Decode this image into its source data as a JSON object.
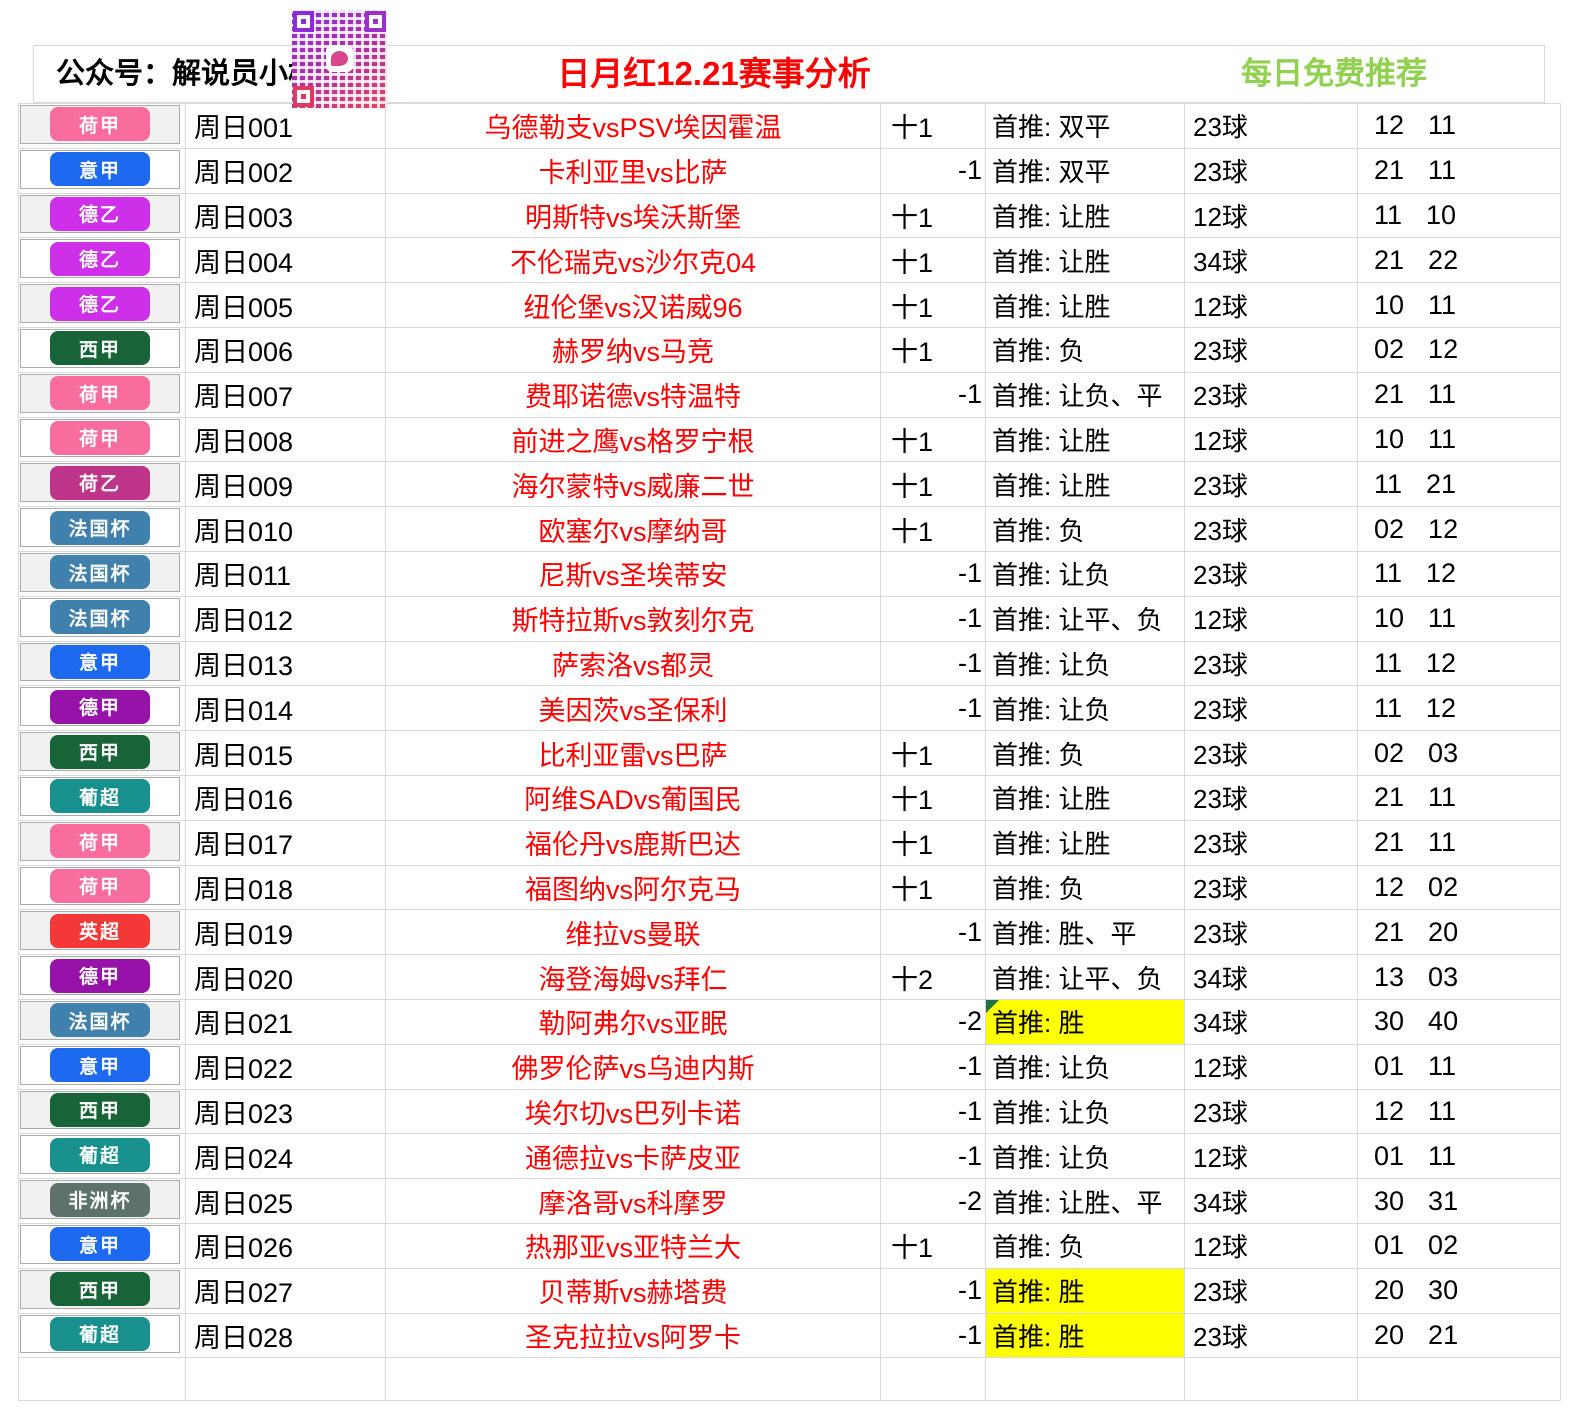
{
  "header": {
    "account": "公众号：解说员小梅",
    "title": "日月红12.21赛事分析",
    "promo": "每日免费推荐"
  },
  "styles": {
    "title_color": "#FF0000",
    "promo_color": "#92D050",
    "match_color": "#FF0000",
    "highlight_color": "#FFFF00",
    "marker_color": "#1E7145"
  },
  "league_colors": {
    "荷甲": "#F96C9E",
    "意甲": "#1D6AF0",
    "德乙": "#CE2FE8",
    "西甲": "#186438",
    "荷乙": "#BE3489",
    "法国杯": "#3F80AC",
    "德甲": "#9712A8",
    "葡超": "#18908E",
    "英超": "#F43838",
    "非洲杯": "#5D726D"
  },
  "rows": [
    {
      "league": "荷甲",
      "id": "周日001",
      "match": "乌德勒支vsPSV埃因霍温",
      "handicap": "十1",
      "pick": "首推: 双平",
      "goals": "23球",
      "num1": "12",
      "num2": "11",
      "highlight": false,
      "marker": false
    },
    {
      "league": "意甲",
      "id": "周日002",
      "match": "卡利亚里vs比萨",
      "handicap": "-1",
      "pick": "首推: 双平",
      "goals": "23球",
      "num1": "21",
      "num2": "11",
      "highlight": false,
      "marker": false
    },
    {
      "league": "德乙",
      "id": "周日003",
      "match": "明斯特vs埃沃斯堡",
      "handicap": "十1",
      "pick": "首推: 让胜",
      "goals": "12球",
      "num1": "11",
      "num2": "10",
      "highlight": false,
      "marker": false
    },
    {
      "league": "德乙",
      "id": "周日004",
      "match": "不伦瑞克vs沙尔克04",
      "handicap": "十1",
      "pick": "首推: 让胜",
      "goals": "34球",
      "num1": "21",
      "num2": "22",
      "highlight": false,
      "marker": false
    },
    {
      "league": "德乙",
      "id": "周日005",
      "match": "纽伦堡vs汉诺威96",
      "handicap": "十1",
      "pick": "首推: 让胜",
      "goals": "12球",
      "num1": "10",
      "num2": "11",
      "highlight": false,
      "marker": false
    },
    {
      "league": "西甲",
      "id": "周日006",
      "match": "赫罗纳vs马竞",
      "handicap": "十1",
      "pick": "首推: 负",
      "goals": "23球",
      "num1": "02",
      "num2": "12",
      "highlight": false,
      "marker": false
    },
    {
      "league": "荷甲",
      "id": "周日007",
      "match": "费耶诺德vs特温特",
      "handicap": "-1",
      "pick": "首推: 让负、平",
      "goals": "23球",
      "num1": "21",
      "num2": "11",
      "highlight": false,
      "marker": false
    },
    {
      "league": "荷甲",
      "id": "周日008",
      "match": "前进之鹰vs格罗宁根",
      "handicap": "十1",
      "pick": "首推: 让胜",
      "goals": "12球",
      "num1": "10",
      "num2": "11",
      "highlight": false,
      "marker": false
    },
    {
      "league": "荷乙",
      "id": "周日009",
      "match": "海尔蒙特vs威廉二世",
      "handicap": "十1",
      "pick": "首推: 让胜",
      "goals": "23球",
      "num1": "11",
      "num2": "21",
      "highlight": false,
      "marker": false
    },
    {
      "league": "法国杯",
      "id": "周日010",
      "match": "欧塞尔vs摩纳哥",
      "handicap": "十1",
      "pick": "首推: 负",
      "goals": "23球",
      "num1": "02",
      "num2": "12",
      "highlight": false,
      "marker": false
    },
    {
      "league": "法国杯",
      "id": "周日011",
      "match": "尼斯vs圣埃蒂安",
      "handicap": "-1",
      "pick": "首推: 让负",
      "goals": "23球",
      "num1": "11",
      "num2": "12",
      "highlight": false,
      "marker": false
    },
    {
      "league": "法国杯",
      "id": "周日012",
      "match": "斯特拉斯vs敦刻尔克",
      "handicap": "-1",
      "pick": "首推: 让平、负",
      "goals": "12球",
      "num1": "10",
      "num2": "11",
      "highlight": false,
      "marker": false
    },
    {
      "league": "意甲",
      "id": "周日013",
      "match": "萨索洛vs都灵",
      "handicap": "-1",
      "pick": "首推: 让负",
      "goals": "23球",
      "num1": "11",
      "num2": "12",
      "highlight": false,
      "marker": false
    },
    {
      "league": "德甲",
      "id": "周日014",
      "match": "美因茨vs圣保利",
      "handicap": "-1",
      "pick": "首推: 让负",
      "goals": "23球",
      "num1": "11",
      "num2": "12",
      "highlight": false,
      "marker": false
    },
    {
      "league": "西甲",
      "id": "周日015",
      "match": "比利亚雷vs巴萨",
      "handicap": "十1",
      "pick": "首推: 负",
      "goals": "23球",
      "num1": "02",
      "num2": "03",
      "highlight": false,
      "marker": false
    },
    {
      "league": "葡超",
      "id": "周日016",
      "match": "阿维SADvs葡国民",
      "handicap": "十1",
      "pick": "首推: 让胜",
      "goals": "23球",
      "num1": "21",
      "num2": "11",
      "highlight": false,
      "marker": false
    },
    {
      "league": "荷甲",
      "id": "周日017",
      "match": "福伦丹vs鹿斯巴达",
      "handicap": "十1",
      "pick": "首推: 让胜",
      "goals": "23球",
      "num1": "21",
      "num2": "11",
      "highlight": false,
      "marker": false
    },
    {
      "league": "荷甲",
      "id": "周日018",
      "match": "福图纳vs阿尔克马",
      "handicap": "十1",
      "pick": "首推: 负",
      "goals": "23球",
      "num1": "12",
      "num2": "02",
      "highlight": false,
      "marker": false
    },
    {
      "league": "英超",
      "id": "周日019",
      "match": "维拉vs曼联",
      "handicap": "-1",
      "pick": "首推: 胜、平",
      "goals": "23球",
      "num1": "21",
      "num2": "20",
      "highlight": false,
      "marker": false
    },
    {
      "league": "德甲",
      "id": "周日020",
      "match": "海登海姆vs拜仁",
      "handicap": "十2",
      "pick": "首推: 让平、负",
      "goals": "34球",
      "num1": "13",
      "num2": "03",
      "highlight": false,
      "marker": false
    },
    {
      "league": "法国杯",
      "id": "周日021",
      "match": "勒阿弗尔vs亚眠",
      "handicap": "-2",
      "pick": "首推: 胜",
      "goals": "34球",
      "num1": "30",
      "num2": "40",
      "highlight": true,
      "marker": true
    },
    {
      "league": "意甲",
      "id": "周日022",
      "match": "佛罗伦萨vs乌迪内斯",
      "handicap": "-1",
      "pick": "首推: 让负",
      "goals": "12球",
      "num1": "01",
      "num2": "11",
      "highlight": false,
      "marker": false
    },
    {
      "league": "西甲",
      "id": "周日023",
      "match": "埃尔切vs巴列卡诺",
      "handicap": "-1",
      "pick": "首推: 让负",
      "goals": "23球",
      "num1": "12",
      "num2": "11",
      "highlight": false,
      "marker": false
    },
    {
      "league": "葡超",
      "id": "周日024",
      "match": "通德拉vs卡萨皮亚",
      "handicap": "-1",
      "pick": "首推: 让负",
      "goals": "12球",
      "num1": "01",
      "num2": "11",
      "highlight": false,
      "marker": false
    },
    {
      "league": "非洲杯",
      "id": "周日025",
      "match": "摩洛哥vs科摩罗",
      "handicap": "-2",
      "pick": "首推: 让胜、平",
      "goals": "34球",
      "num1": "30",
      "num2": "31",
      "highlight": false,
      "marker": false
    },
    {
      "league": "意甲",
      "id": "周日026",
      "match": "热那亚vs亚特兰大",
      "handicap": "十1",
      "pick": "首推: 负",
      "goals": "12球",
      "num1": "01",
      "num2": "02",
      "highlight": false,
      "marker": false
    },
    {
      "league": "西甲",
      "id": "周日027",
      "match": "贝蒂斯vs赫塔费",
      "handicap": "-1",
      "pick": "首推: 胜",
      "goals": "23球",
      "num1": "20",
      "num2": "30",
      "highlight": true,
      "marker": false
    },
    {
      "league": "葡超",
      "id": "周日028",
      "match": "圣克拉拉vs阿罗卡",
      "handicap": "-1",
      "pick": "首推: 胜",
      "goals": "23球",
      "num1": "20",
      "num2": "21",
      "highlight": true,
      "marker": false
    }
  ]
}
